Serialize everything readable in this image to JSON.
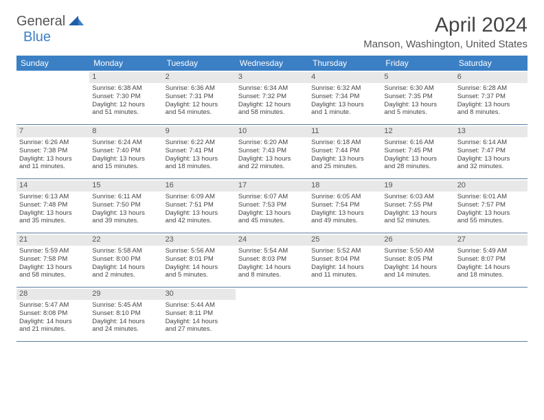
{
  "brand": {
    "general": "General",
    "blue": "Blue"
  },
  "title": "April 2024",
  "location": "Manson, Washington, United States",
  "colors": {
    "header_bg": "#3b7fc4",
    "header_text": "#ffffff",
    "daynum_bg": "#e8e8e8",
    "border": "#5a7a9a",
    "body_text": "#444444"
  },
  "day_names": [
    "Sunday",
    "Monday",
    "Tuesday",
    "Wednesday",
    "Thursday",
    "Friday",
    "Saturday"
  ],
  "weeks": [
    [
      {
        "empty": true
      },
      {
        "n": "1",
        "sr": "Sunrise: 6:38 AM",
        "ss": "Sunset: 7:30 PM",
        "d1": "Daylight: 12 hours",
        "d2": "and 51 minutes."
      },
      {
        "n": "2",
        "sr": "Sunrise: 6:36 AM",
        "ss": "Sunset: 7:31 PM",
        "d1": "Daylight: 12 hours",
        "d2": "and 54 minutes."
      },
      {
        "n": "3",
        "sr": "Sunrise: 6:34 AM",
        "ss": "Sunset: 7:32 PM",
        "d1": "Daylight: 12 hours",
        "d2": "and 58 minutes."
      },
      {
        "n": "4",
        "sr": "Sunrise: 6:32 AM",
        "ss": "Sunset: 7:34 PM",
        "d1": "Daylight: 13 hours",
        "d2": "and 1 minute."
      },
      {
        "n": "5",
        "sr": "Sunrise: 6:30 AM",
        "ss": "Sunset: 7:35 PM",
        "d1": "Daylight: 13 hours",
        "d2": "and 5 minutes."
      },
      {
        "n": "6",
        "sr": "Sunrise: 6:28 AM",
        "ss": "Sunset: 7:37 PM",
        "d1": "Daylight: 13 hours",
        "d2": "and 8 minutes."
      }
    ],
    [
      {
        "n": "7",
        "sr": "Sunrise: 6:26 AM",
        "ss": "Sunset: 7:38 PM",
        "d1": "Daylight: 13 hours",
        "d2": "and 11 minutes."
      },
      {
        "n": "8",
        "sr": "Sunrise: 6:24 AM",
        "ss": "Sunset: 7:40 PM",
        "d1": "Daylight: 13 hours",
        "d2": "and 15 minutes."
      },
      {
        "n": "9",
        "sr": "Sunrise: 6:22 AM",
        "ss": "Sunset: 7:41 PM",
        "d1": "Daylight: 13 hours",
        "d2": "and 18 minutes."
      },
      {
        "n": "10",
        "sr": "Sunrise: 6:20 AM",
        "ss": "Sunset: 7:43 PM",
        "d1": "Daylight: 13 hours",
        "d2": "and 22 minutes."
      },
      {
        "n": "11",
        "sr": "Sunrise: 6:18 AM",
        "ss": "Sunset: 7:44 PM",
        "d1": "Daylight: 13 hours",
        "d2": "and 25 minutes."
      },
      {
        "n": "12",
        "sr": "Sunrise: 6:16 AM",
        "ss": "Sunset: 7:45 PM",
        "d1": "Daylight: 13 hours",
        "d2": "and 28 minutes."
      },
      {
        "n": "13",
        "sr": "Sunrise: 6:14 AM",
        "ss": "Sunset: 7:47 PM",
        "d1": "Daylight: 13 hours",
        "d2": "and 32 minutes."
      }
    ],
    [
      {
        "n": "14",
        "sr": "Sunrise: 6:13 AM",
        "ss": "Sunset: 7:48 PM",
        "d1": "Daylight: 13 hours",
        "d2": "and 35 minutes."
      },
      {
        "n": "15",
        "sr": "Sunrise: 6:11 AM",
        "ss": "Sunset: 7:50 PM",
        "d1": "Daylight: 13 hours",
        "d2": "and 39 minutes."
      },
      {
        "n": "16",
        "sr": "Sunrise: 6:09 AM",
        "ss": "Sunset: 7:51 PM",
        "d1": "Daylight: 13 hours",
        "d2": "and 42 minutes."
      },
      {
        "n": "17",
        "sr": "Sunrise: 6:07 AM",
        "ss": "Sunset: 7:53 PM",
        "d1": "Daylight: 13 hours",
        "d2": "and 45 minutes."
      },
      {
        "n": "18",
        "sr": "Sunrise: 6:05 AM",
        "ss": "Sunset: 7:54 PM",
        "d1": "Daylight: 13 hours",
        "d2": "and 49 minutes."
      },
      {
        "n": "19",
        "sr": "Sunrise: 6:03 AM",
        "ss": "Sunset: 7:55 PM",
        "d1": "Daylight: 13 hours",
        "d2": "and 52 minutes."
      },
      {
        "n": "20",
        "sr": "Sunrise: 6:01 AM",
        "ss": "Sunset: 7:57 PM",
        "d1": "Daylight: 13 hours",
        "d2": "and 55 minutes."
      }
    ],
    [
      {
        "n": "21",
        "sr": "Sunrise: 5:59 AM",
        "ss": "Sunset: 7:58 PM",
        "d1": "Daylight: 13 hours",
        "d2": "and 58 minutes."
      },
      {
        "n": "22",
        "sr": "Sunrise: 5:58 AM",
        "ss": "Sunset: 8:00 PM",
        "d1": "Daylight: 14 hours",
        "d2": "and 2 minutes."
      },
      {
        "n": "23",
        "sr": "Sunrise: 5:56 AM",
        "ss": "Sunset: 8:01 PM",
        "d1": "Daylight: 14 hours",
        "d2": "and 5 minutes."
      },
      {
        "n": "24",
        "sr": "Sunrise: 5:54 AM",
        "ss": "Sunset: 8:03 PM",
        "d1": "Daylight: 14 hours",
        "d2": "and 8 minutes."
      },
      {
        "n": "25",
        "sr": "Sunrise: 5:52 AM",
        "ss": "Sunset: 8:04 PM",
        "d1": "Daylight: 14 hours",
        "d2": "and 11 minutes."
      },
      {
        "n": "26",
        "sr": "Sunrise: 5:50 AM",
        "ss": "Sunset: 8:05 PM",
        "d1": "Daylight: 14 hours",
        "d2": "and 14 minutes."
      },
      {
        "n": "27",
        "sr": "Sunrise: 5:49 AM",
        "ss": "Sunset: 8:07 PM",
        "d1": "Daylight: 14 hours",
        "d2": "and 18 minutes."
      }
    ],
    [
      {
        "n": "28",
        "sr": "Sunrise: 5:47 AM",
        "ss": "Sunset: 8:08 PM",
        "d1": "Daylight: 14 hours",
        "d2": "and 21 minutes."
      },
      {
        "n": "29",
        "sr": "Sunrise: 5:45 AM",
        "ss": "Sunset: 8:10 PM",
        "d1": "Daylight: 14 hours",
        "d2": "and 24 minutes."
      },
      {
        "n": "30",
        "sr": "Sunrise: 5:44 AM",
        "ss": "Sunset: 8:11 PM",
        "d1": "Daylight: 14 hours",
        "d2": "and 27 minutes."
      },
      {
        "empty": true
      },
      {
        "empty": true
      },
      {
        "empty": true
      },
      {
        "empty": true
      }
    ]
  ]
}
